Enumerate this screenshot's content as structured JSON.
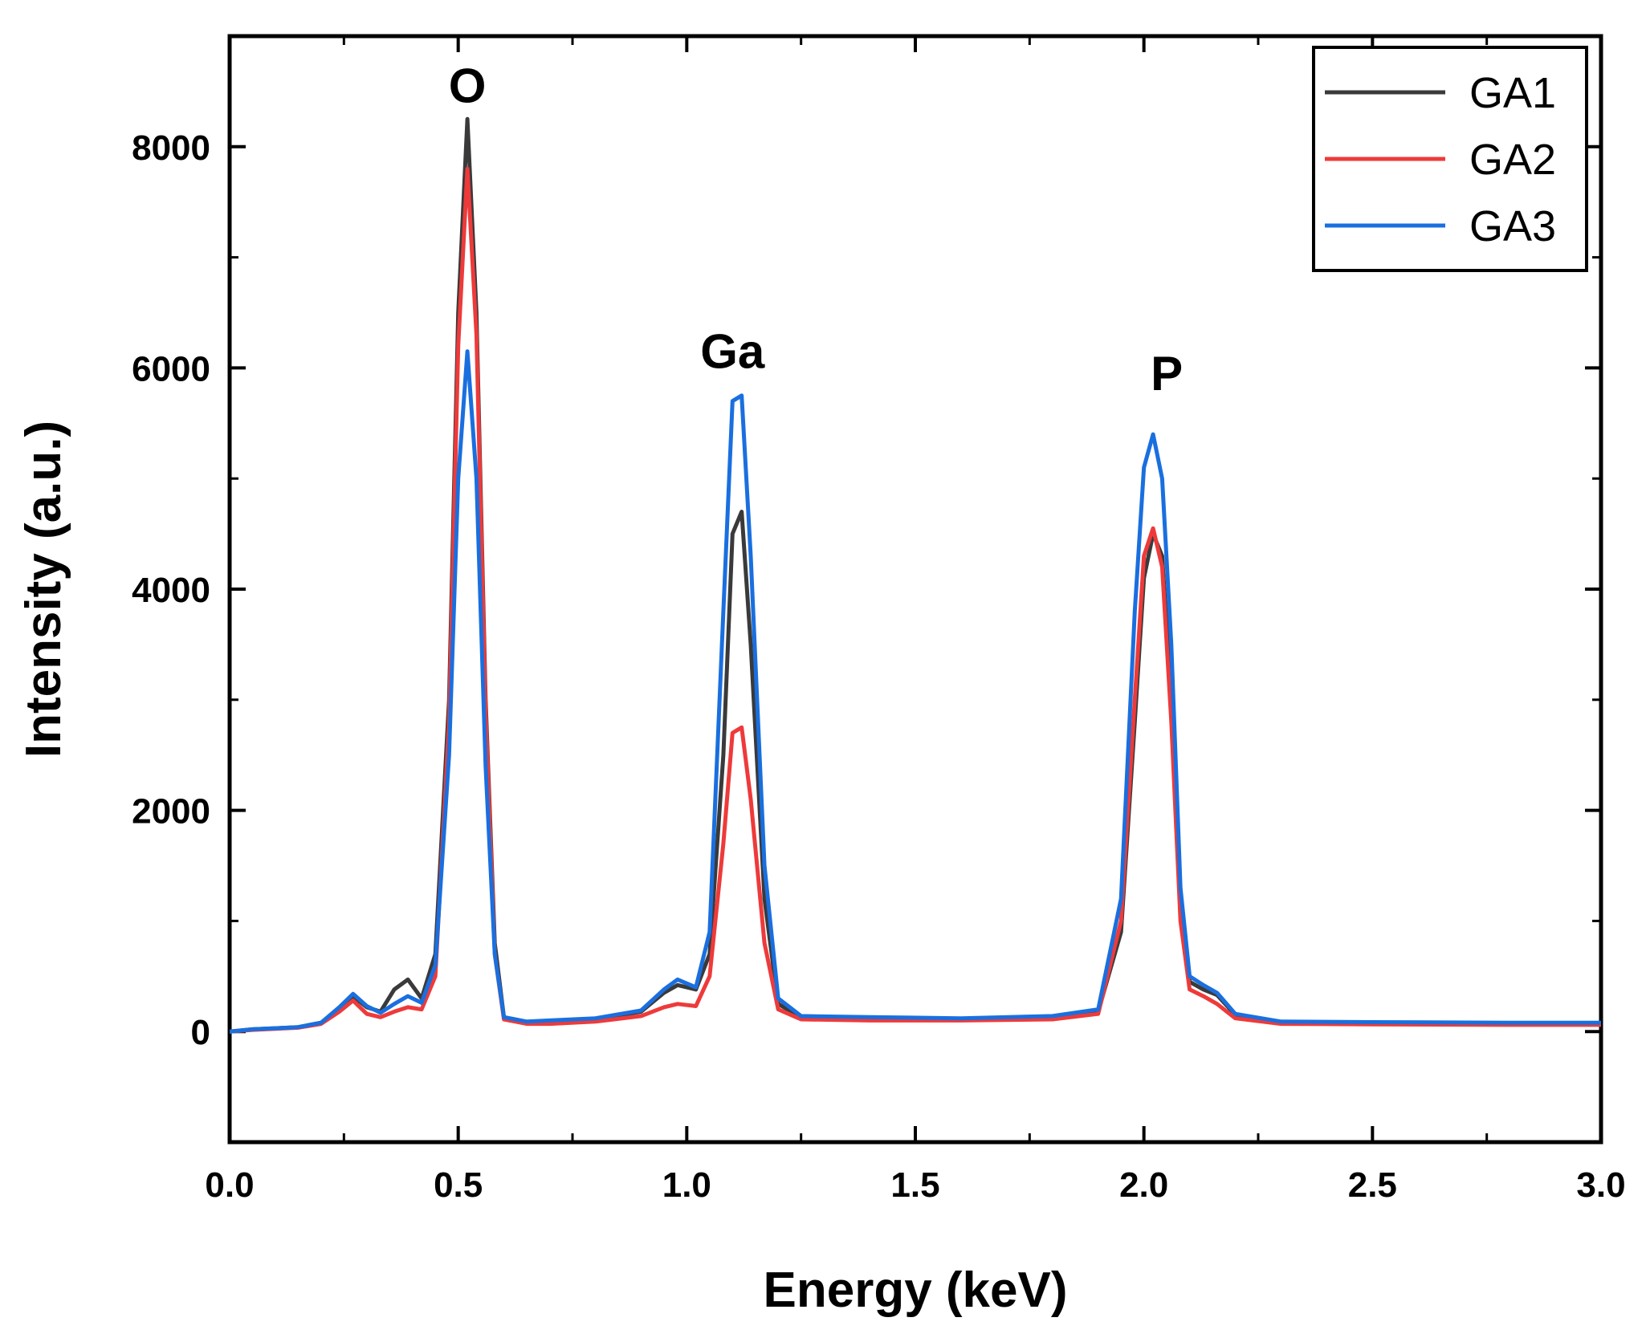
{
  "chart_data": {
    "type": "line",
    "title": "",
    "xlabel": "Energy (keV)",
    "ylabel": "Intensity (a.u.)",
    "xlim": [
      0.0,
      3.0
    ],
    "ylim": [
      -1000,
      9000
    ],
    "x_ticks": [
      0.0,
      0.5,
      1.0,
      1.5,
      2.0,
      2.5,
      3.0
    ],
    "x_tick_labels": [
      "0.0",
      "0.5",
      "1.0",
      "1.5",
      "2.0",
      "2.5",
      "3.0"
    ],
    "y_ticks": [
      0,
      2000,
      4000,
      6000,
      8000
    ],
    "y_tick_labels": [
      "0",
      "2000",
      "4000",
      "6000",
      "8000"
    ],
    "legend_position": "top-right",
    "annotations": [
      {
        "text": "O",
        "x": 0.52,
        "y": 8400
      },
      {
        "text": "Ga",
        "x": 1.1,
        "y": 6000
      },
      {
        "text": "P",
        "x": 2.05,
        "y": 5800
      }
    ],
    "series": [
      {
        "name": "GA1",
        "color": "#3a3a3a",
        "x": [
          0.0,
          0.05,
          0.1,
          0.15,
          0.2,
          0.24,
          0.27,
          0.3,
          0.33,
          0.36,
          0.39,
          0.42,
          0.45,
          0.48,
          0.5,
          0.52,
          0.54,
          0.56,
          0.58,
          0.6,
          0.65,
          0.7,
          0.8,
          0.9,
          0.95,
          0.98,
          1.02,
          1.05,
          1.08,
          1.1,
          1.12,
          1.14,
          1.17,
          1.2,
          1.25,
          1.4,
          1.6,
          1.8,
          1.9,
          1.95,
          1.98,
          2.0,
          2.02,
          2.04,
          2.06,
          2.08,
          2.1,
          2.13,
          2.16,
          2.2,
          2.3,
          2.5,
          2.8,
          3.0
        ],
        "values": [
          0,
          20,
          30,
          40,
          80,
          200,
          320,
          220,
          180,
          380,
          470,
          300,
          700,
          3000,
          6500,
          8250,
          6500,
          3000,
          800,
          130,
          80,
          90,
          110,
          180,
          350,
          420,
          380,
          700,
          2500,
          4500,
          4700,
          3500,
          1200,
          250,
          130,
          120,
          110,
          130,
          180,
          900,
          2800,
          4100,
          4500,
          4300,
          3000,
          1200,
          450,
          380,
          330,
          150,
          80,
          75,
          70,
          70
        ]
      },
      {
        "name": "GA2",
        "color": "#ee3a3a",
        "x": [
          0.0,
          0.05,
          0.1,
          0.15,
          0.2,
          0.24,
          0.27,
          0.3,
          0.33,
          0.36,
          0.39,
          0.42,
          0.45,
          0.48,
          0.5,
          0.52,
          0.54,
          0.56,
          0.58,
          0.6,
          0.65,
          0.7,
          0.8,
          0.9,
          0.95,
          0.98,
          1.02,
          1.05,
          1.08,
          1.1,
          1.12,
          1.14,
          1.17,
          1.2,
          1.25,
          1.4,
          1.6,
          1.8,
          1.9,
          1.95,
          1.98,
          2.0,
          2.02,
          2.04,
          2.06,
          2.08,
          2.1,
          2.13,
          2.16,
          2.2,
          2.3,
          2.5,
          2.8,
          3.0
        ],
        "values": [
          0,
          15,
          25,
          35,
          70,
          180,
          280,
          160,
          130,
          180,
          220,
          200,
          500,
          2800,
          6200,
          7800,
          6300,
          2900,
          700,
          110,
          70,
          70,
          90,
          140,
          220,
          250,
          230,
          500,
          1700,
          2700,
          2750,
          2100,
          800,
          200,
          110,
          100,
          100,
          110,
          160,
          1000,
          3000,
          4300,
          4550,
          4200,
          2800,
          1000,
          380,
          320,
          250,
          120,
          70,
          65,
          60,
          60
        ]
      },
      {
        "name": "GA3",
        "color": "#1a6fdf",
        "x": [
          0.0,
          0.05,
          0.1,
          0.15,
          0.2,
          0.24,
          0.27,
          0.3,
          0.33,
          0.36,
          0.39,
          0.42,
          0.45,
          0.48,
          0.5,
          0.52,
          0.54,
          0.56,
          0.58,
          0.6,
          0.65,
          0.7,
          0.8,
          0.9,
          0.95,
          0.98,
          1.02,
          1.05,
          1.08,
          1.1,
          1.12,
          1.14,
          1.17,
          1.2,
          1.25,
          1.4,
          1.6,
          1.8,
          1.9,
          1.95,
          1.98,
          2.0,
          2.02,
          2.04,
          2.06,
          2.08,
          2.1,
          2.13,
          2.16,
          2.2,
          2.3,
          2.5,
          2.8,
          3.0
        ],
        "values": [
          0,
          20,
          30,
          40,
          80,
          220,
          340,
          230,
          170,
          250,
          320,
          260,
          600,
          2500,
          5000,
          6150,
          5000,
          2400,
          700,
          130,
          90,
          100,
          120,
          190,
          380,
          470,
          400,
          900,
          3800,
          5700,
          5750,
          4300,
          1500,
          300,
          140,
          130,
          120,
          140,
          200,
          1200,
          3800,
          5100,
          5400,
          5000,
          3500,
          1300,
          500,
          420,
          350,
          160,
          90,
          85,
          80,
          80
        ]
      }
    ]
  }
}
